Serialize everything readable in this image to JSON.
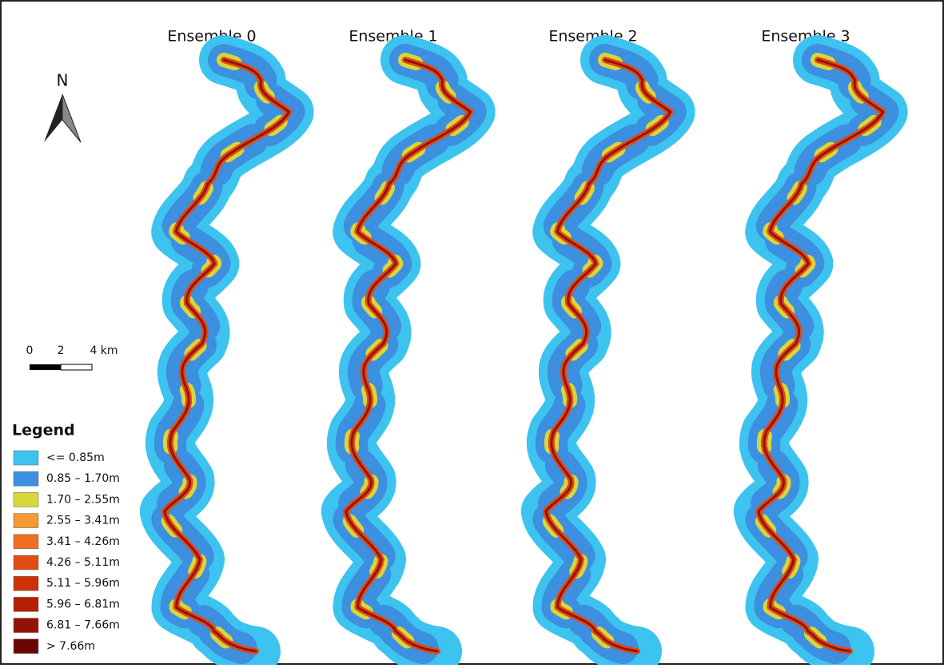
{
  "panels": [
    {
      "title": "Ensemble 0"
    },
    {
      "title": "Ensemble 1"
    },
    {
      "title": "Ensemble 2"
    },
    {
      "title": "Ensemble 3"
    }
  ],
  "north_arrow": {
    "label": "N"
  },
  "scale_bar": {
    "labels": [
      "0",
      "2",
      "4 km"
    ]
  },
  "legend": {
    "title": "Legend",
    "items": [
      {
        "label": "<= 0.85m",
        "color": "#3cc3f0"
      },
      {
        "label": "0.85 – 1.70m",
        "color": "#3d8fe0"
      },
      {
        "label": "1.70 – 2.55m",
        "color": "#d8d63a"
      },
      {
        "label": "2.55 – 3.41m",
        "color": "#f59a32"
      },
      {
        "label": "3.41 – 4.26m",
        "color": "#f06e22"
      },
      {
        "label": "4.26 – 5.11m",
        "color": "#e04b14"
      },
      {
        "label": "5.11 – 5.96m",
        "color": "#cc3208"
      },
      {
        "label": "5.96 – 6.81m",
        "color": "#b32006"
      },
      {
        "label": "6.81 – 7.66m",
        "color": "#951206"
      },
      {
        "label": "> 7.66m",
        "color": "#6e0505"
      }
    ]
  }
}
